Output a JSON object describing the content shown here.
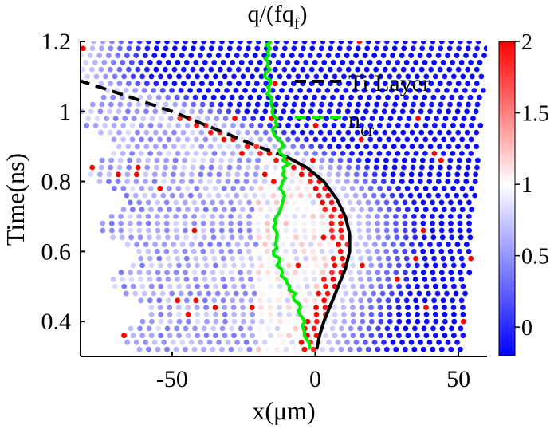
{
  "chart_data": {
    "type": "scatter",
    "title": "q/(fq",
    "title_sub": "f",
    "title_close": ")",
    "xlabel": "x(μm)",
    "ylabel": "Time(ns)",
    "xlim": [
      -82,
      60
    ],
    "ylim": [
      0.3,
      1.2
    ],
    "x_ticks": [
      {
        "value": -50,
        "label": "-50"
      },
      {
        "value": 0,
        "label": "0"
      },
      {
        "value": 50,
        "label": "50"
      }
    ],
    "y_ticks": [
      {
        "value": 0.4,
        "label": "0.4"
      },
      {
        "value": 0.6,
        "label": "0.6"
      },
      {
        "value": 0.8,
        "label": "0.8"
      },
      {
        "value": 1.0,
        "label": "1"
      },
      {
        "value": 1.2,
        "label": "1.2"
      }
    ],
    "colorbar": {
      "range": [
        -0.2,
        2
      ],
      "ticks": [
        {
          "value": 0,
          "label": "0"
        },
        {
          "value": 0.5,
          "label": "0.5"
        },
        {
          "value": 1,
          "label": "1"
        },
        {
          "value": 1.5,
          "label": "1.5"
        },
        {
          "value": 2,
          "label": "2"
        }
      ],
      "colors": [
        "#0000ff",
        "#ffffff",
        "#ff0000"
      ]
    },
    "legend": {
      "placement": "top-right",
      "entries": [
        {
          "label": "Ti Layer",
          "sub": "",
          "color": "#000000",
          "style": "dashed"
        },
        {
          "label": "n",
          "sub": "cr",
          "color": "#00ee00",
          "style": "dashed"
        }
      ]
    },
    "series": [
      {
        "name": "Ti Layer",
        "color": "#000000",
        "style": "solid-then-dashed",
        "dashed_from_time": 0.87,
        "x": [
          0.5,
          1.5,
          3,
          5.5,
          8,
          10.5,
          12,
          12,
          10.5,
          7.5,
          3,
          -3,
          -10,
          -20,
          -35,
          -50,
          -68,
          -83
        ],
        "y": [
          0.32,
          0.36,
          0.4,
          0.45,
          0.5,
          0.55,
          0.6,
          0.65,
          0.7,
          0.75,
          0.8,
          0.84,
          0.87,
          0.9,
          0.95,
          1.0,
          1.05,
          1.09
        ]
      },
      {
        "name": "n",
        "color": "#00ee00",
        "style": "solid",
        "x": [
          -2,
          -3,
          -4,
          -6,
          -9,
          -12,
          -14,
          -14,
          -13,
          -12,
          -11,
          -10,
          -12,
          -14,
          -15,
          -16,
          -17,
          -16
        ],
        "y": [
          0.32,
          0.36,
          0.4,
          0.45,
          0.5,
          0.55,
          0.6,
          0.65,
          0.7,
          0.75,
          0.8,
          0.85,
          0.9,
          0.95,
          1.0,
          1.05,
          1.1,
          1.2
        ]
      }
    ]
  }
}
